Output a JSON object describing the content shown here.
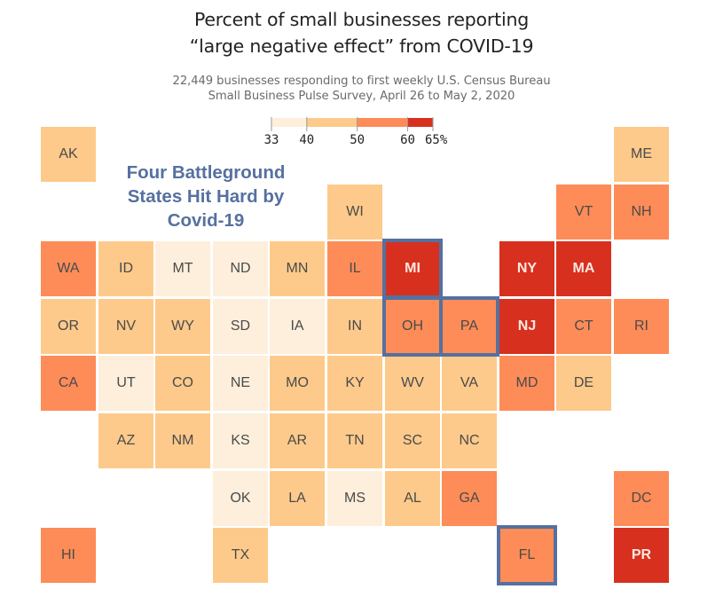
{
  "chart_data": {
    "type": "heatmap",
    "subtype": "tile-grid-map",
    "title": "Percent of small businesses reporting “large negative effect” from COVID-19",
    "title_lines": [
      "Percent of small businesses reporting",
      "“large negative effect” from COVID-19"
    ],
    "subtitle_lines": [
      "22,449 businesses responding to first weekly U.S. Census Bureau",
      "Small Business Pulse Survey, April 26 to May 2, 2020"
    ],
    "annotation_lines": [
      "Four Battleground",
      "States Hit Hard by",
      "Covid-19"
    ],
    "legend": {
      "ticks": [
        33,
        40,
        50,
        60,
        65
      ],
      "tick_labels": [
        "33",
        "40",
        "50",
        "60",
        "65%"
      ],
      "range": [
        33,
        65
      ],
      "bins": [
        {
          "min": 33,
          "max": 40,
          "color": "#fdefdc"
        },
        {
          "min": 40,
          "max": 50,
          "color": "#fdca8b"
        },
        {
          "min": 50,
          "max": 60,
          "color": "#fd8c58"
        },
        {
          "min": 60,
          "max": 65,
          "color": "#d7301f"
        }
      ]
    },
    "highlighted": [
      "MI",
      "OH",
      "PA",
      "FL"
    ],
    "states": [
      {
        "abbr": "AK",
        "col": 0,
        "row": 0,
        "bin": 1
      },
      {
        "abbr": "ME",
        "col": 10,
        "row": 0,
        "bin": 1
      },
      {
        "abbr": "WI",
        "col": 5,
        "row": 1,
        "bin": 1
      },
      {
        "abbr": "VT",
        "col": 9,
        "row": 1,
        "bin": 2
      },
      {
        "abbr": "NH",
        "col": 10,
        "row": 1,
        "bin": 2
      },
      {
        "abbr": "WA",
        "col": 0,
        "row": 2,
        "bin": 2
      },
      {
        "abbr": "ID",
        "col": 1,
        "row": 2,
        "bin": 1
      },
      {
        "abbr": "MT",
        "col": 2,
        "row": 2,
        "bin": 0
      },
      {
        "abbr": "ND",
        "col": 3,
        "row": 2,
        "bin": 0
      },
      {
        "abbr": "MN",
        "col": 4,
        "row": 2,
        "bin": 1
      },
      {
        "abbr": "IL",
        "col": 5,
        "row": 2,
        "bin": 2
      },
      {
        "abbr": "MI",
        "col": 6,
        "row": 2,
        "bin": 3
      },
      {
        "abbr": "NY",
        "col": 8,
        "row": 2,
        "bin": 3
      },
      {
        "abbr": "MA",
        "col": 9,
        "row": 2,
        "bin": 3
      },
      {
        "abbr": "OR",
        "col": 0,
        "row": 3,
        "bin": 1
      },
      {
        "abbr": "NV",
        "col": 1,
        "row": 3,
        "bin": 1
      },
      {
        "abbr": "WY",
        "col": 2,
        "row": 3,
        "bin": 1
      },
      {
        "abbr": "SD",
        "col": 3,
        "row": 3,
        "bin": 0
      },
      {
        "abbr": "IA",
        "col": 4,
        "row": 3,
        "bin": 0
      },
      {
        "abbr": "IN",
        "col": 5,
        "row": 3,
        "bin": 1
      },
      {
        "abbr": "OH",
        "col": 6,
        "row": 3,
        "bin": 2
      },
      {
        "abbr": "PA",
        "col": 7,
        "row": 3,
        "bin": 2
      },
      {
        "abbr": "NJ",
        "col": 8,
        "row": 3,
        "bin": 3
      },
      {
        "abbr": "CT",
        "col": 9,
        "row": 3,
        "bin": 2
      },
      {
        "abbr": "RI",
        "col": 10,
        "row": 3,
        "bin": 2
      },
      {
        "abbr": "CA",
        "col": 0,
        "row": 4,
        "bin": 2
      },
      {
        "abbr": "UT",
        "col": 1,
        "row": 4,
        "bin": 0
      },
      {
        "abbr": "CO",
        "col": 2,
        "row": 4,
        "bin": 1
      },
      {
        "abbr": "NE",
        "col": 3,
        "row": 4,
        "bin": 0
      },
      {
        "abbr": "MO",
        "col": 4,
        "row": 4,
        "bin": 1
      },
      {
        "abbr": "KY",
        "col": 5,
        "row": 4,
        "bin": 1
      },
      {
        "abbr": "WV",
        "col": 6,
        "row": 4,
        "bin": 1
      },
      {
        "abbr": "VA",
        "col": 7,
        "row": 4,
        "bin": 1
      },
      {
        "abbr": "MD",
        "col": 8,
        "row": 4,
        "bin": 2
      },
      {
        "abbr": "DE",
        "col": 9,
        "row": 4,
        "bin": 1
      },
      {
        "abbr": "AZ",
        "col": 1,
        "row": 5,
        "bin": 1
      },
      {
        "abbr": "NM",
        "col": 2,
        "row": 5,
        "bin": 1
      },
      {
        "abbr": "KS",
        "col": 3,
        "row": 5,
        "bin": 0
      },
      {
        "abbr": "AR",
        "col": 4,
        "row": 5,
        "bin": 1
      },
      {
        "abbr": "TN",
        "col": 5,
        "row": 5,
        "bin": 1
      },
      {
        "abbr": "SC",
        "col": 6,
        "row": 5,
        "bin": 1
      },
      {
        "abbr": "NC",
        "col": 7,
        "row": 5,
        "bin": 1
      },
      {
        "abbr": "OK",
        "col": 3,
        "row": 6,
        "bin": 0
      },
      {
        "abbr": "LA",
        "col": 4,
        "row": 6,
        "bin": 1
      },
      {
        "abbr": "MS",
        "col": 5,
        "row": 6,
        "bin": 0
      },
      {
        "abbr": "AL",
        "col": 6,
        "row": 6,
        "bin": 1
      },
      {
        "abbr": "GA",
        "col": 7,
        "row": 6,
        "bin": 2
      },
      {
        "abbr": "DC",
        "col": 10,
        "row": 6,
        "bin": 2
      },
      {
        "abbr": "HI",
        "col": 0,
        "row": 7,
        "bin": 2
      },
      {
        "abbr": "TX",
        "col": 3,
        "row": 7,
        "bin": 1
      },
      {
        "abbr": "FL",
        "col": 8,
        "row": 7,
        "bin": 2
      },
      {
        "abbr": "PR",
        "col": 10,
        "row": 7,
        "bin": 3
      }
    ]
  }
}
